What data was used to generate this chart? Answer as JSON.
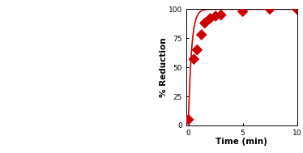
{
  "scatter_x": [
    0,
    0.5,
    0.8,
    1.2,
    1.5,
    2.0,
    2.5,
    3.0,
    5.0,
    7.5,
    10.0
  ],
  "scatter_y": [
    5,
    57,
    65,
    78,
    88,
    92,
    94,
    95,
    98,
    100,
    100
  ],
  "xlim": [
    -0.2,
    10
  ],
  "ylim": [
    0,
    100
  ],
  "xlabel": "Time (min)",
  "ylabel": "% Reduction",
  "xticks": [
    0,
    5,
    10
  ],
  "yticks": [
    0,
    25,
    50,
    75,
    100
  ],
  "marker_color": "#cc0000",
  "line_color": "#cc0000",
  "marker": "D",
  "marker_size": 7,
  "line_width": 1.2,
  "k_fit": 3.5
}
